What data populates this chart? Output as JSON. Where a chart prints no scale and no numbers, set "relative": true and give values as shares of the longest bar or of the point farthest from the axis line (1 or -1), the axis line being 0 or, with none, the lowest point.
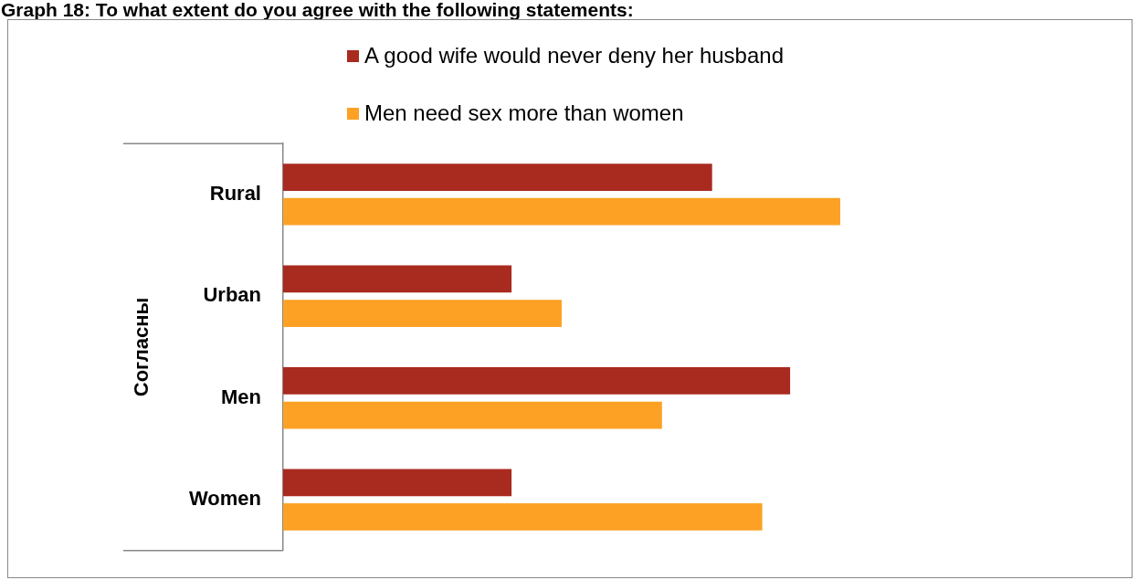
{
  "chart_data": {
    "type": "bar",
    "orientation": "horizontal",
    "relative": true,
    "title": "Graph 18: To what extent do you agree with the following statements:",
    "ylabel": "Согласны",
    "categories": [
      "Rural",
      "Urban",
      "Men",
      "Women"
    ],
    "series": [
      {
        "name": "A good wife would never deny her husband",
        "color": "#a92a1f",
        "values": [
          0.77,
          0.41,
          0.91,
          0.41
        ]
      },
      {
        "name": "Men need sex more than women",
        "color": "#fda125",
        "values": [
          1,
          0.5,
          0.68,
          0.86
        ]
      }
    ],
    "legend": "top"
  }
}
